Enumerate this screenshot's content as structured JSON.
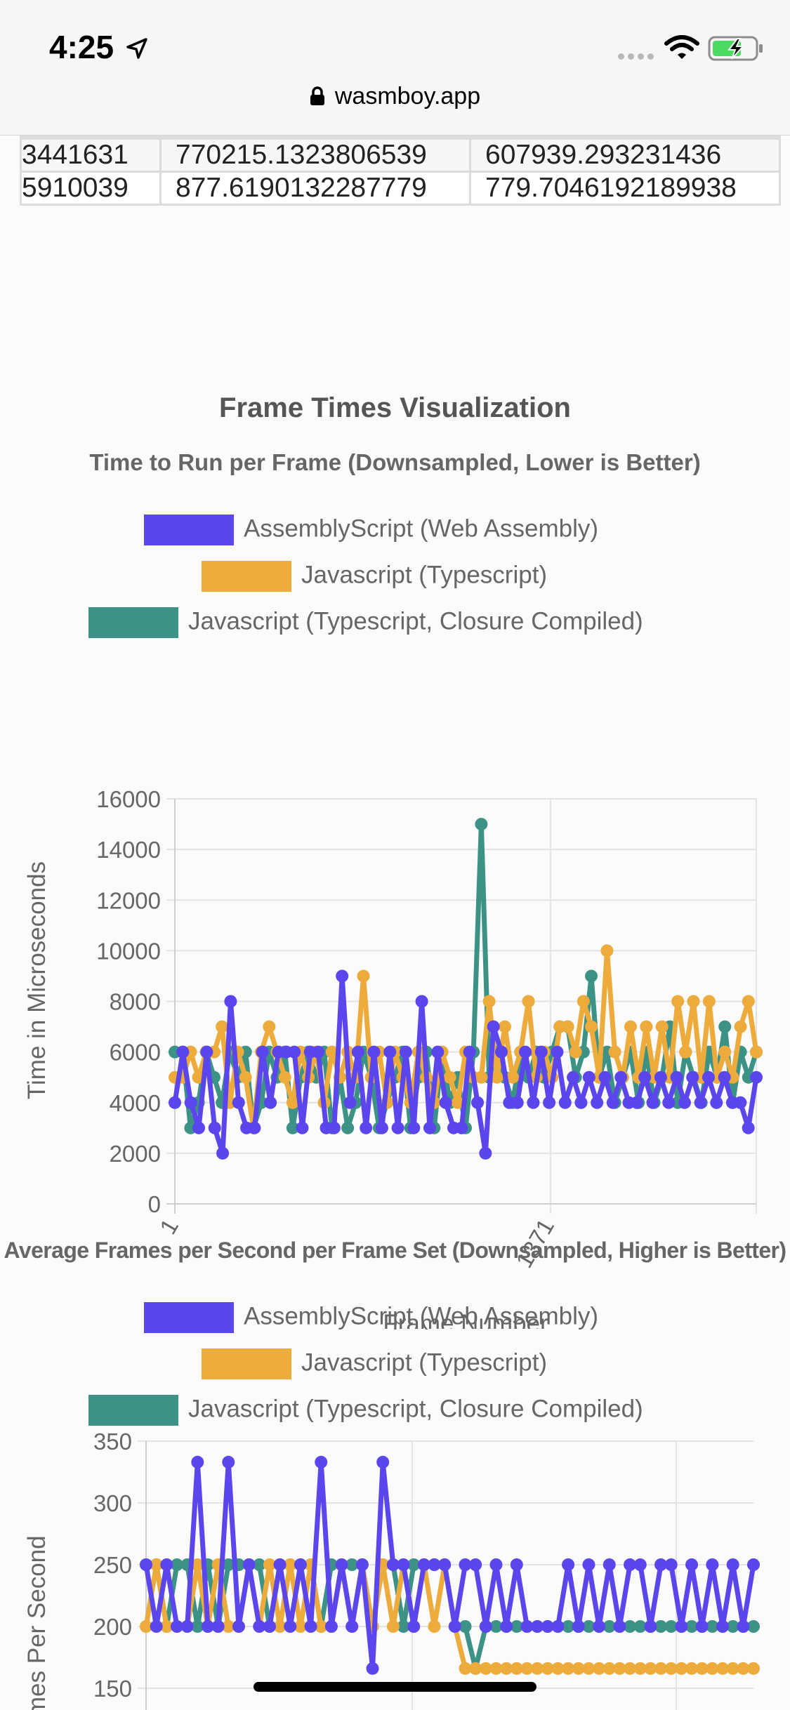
{
  "status_bar": {
    "time": "4:25"
  },
  "browser": {
    "url": "wasmboy.app"
  },
  "results_table": {
    "rows": [
      [
        "",
        "",
        ""
      ],
      [
        "3441631",
        "770215.1323806539",
        "607939.293231436"
      ],
      [
        "5910039",
        "877.6190132287779",
        "779.7046192189938"
      ]
    ]
  },
  "section": {
    "title": "Frame Times Visualization"
  },
  "colors": {
    "wasm": "#5b45ec",
    "js": "#edab3b",
    "closure": "#3c9385"
  },
  "legend": [
    {
      "label": "AssemblyScript (Web Assembly)",
      "color": "#5b45ec"
    },
    {
      "label": "Javascript (Typescript)",
      "color": "#edab3b"
    },
    {
      "label": "Javascript (Typescript, Closure Compiled)",
      "color": "#3c9385"
    }
  ],
  "chart_data": [
    {
      "type": "line",
      "title": "Time to Run per Frame (Downsampled, Lower is Better)",
      "xlabel": "Frame Number",
      "ylabel": "Time in Microseconds",
      "ylim": [
        0,
        16000
      ],
      "yticks": [
        "0",
        "2000",
        "4000",
        "6000",
        "8000",
        "10000",
        "12000",
        "14000",
        "16000"
      ],
      "xticks": [
        "1",
        "1371"
      ],
      "grid": true,
      "legend_position": "top",
      "series": [
        {
          "name": "AssemblyScript (Web Assembly)",
          "color": "#5b45ec",
          "values": [
            4000,
            6000,
            4000,
            3000,
            6000,
            3000,
            2000,
            8000,
            4000,
            3000,
            3000,
            6000,
            4000,
            6000,
            6000,
            6000,
            3000,
            6000,
            6000,
            3000,
            3000,
            9000,
            4000,
            6000,
            3000,
            6000,
            3000,
            6000,
            3000,
            6000,
            3000,
            8000,
            3000,
            6000,
            4000,
            3000,
            3000,
            6000,
            4000,
            2000,
            7000,
            6000,
            4000,
            4000,
            6000,
            4000,
            6000,
            4000,
            6000,
            4000,
            5000,
            4000,
            5000,
            4000,
            5000,
            4000,
            5000,
            4000,
            4000,
            5000,
            4000,
            5000,
            4000,
            5000,
            4000,
            5000,
            4000,
            5000,
            4000,
            5000,
            4000,
            4000,
            3000,
            5000
          ]
        },
        {
          "name": "Javascript (Typescript)",
          "color": "#edab3b",
          "values": [
            5000,
            5000,
            6000,
            5000,
            6000,
            6000,
            7000,
            4000,
            6000,
            5000,
            3000,
            6000,
            7000,
            6000,
            5000,
            4000,
            6000,
            5000,
            6000,
            4000,
            6000,
            5000,
            6000,
            5000,
            9000,
            5000,
            6000,
            4000,
            6000,
            5000,
            4000,
            6000,
            5000,
            4000,
            6000,
            5000,
            4000,
            6000,
            5000,
            5000,
            8000,
            5000,
            7000,
            5000,
            6000,
            8000,
            5000,
            6000,
            5000,
            7000,
            7000,
            6000,
            8000,
            7000,
            5000,
            10000,
            6000,
            5000,
            7000,
            5000,
            7000,
            5000,
            7000,
            5000,
            8000,
            6000,
            8000,
            5000,
            8000,
            5000,
            6000,
            5000,
            7000,
            8000,
            6000
          ]
        },
        {
          "name": "Javascript (Typescript, Closure Compiled)",
          "color": "#3c9385",
          "values": [
            6000,
            6000,
            3000,
            4000,
            6000,
            5000,
            4000,
            6000,
            5000,
            6000,
            3000,
            4000,
            6000,
            5000,
            6000,
            3000,
            5000,
            6000,
            5000,
            6000,
            3000,
            5000,
            3000,
            4000,
            6000,
            5000,
            3000,
            4000,
            5000,
            6000,
            3000,
            5000,
            6000,
            3000,
            6000,
            4000,
            5000,
            3000,
            6000,
            15000,
            5000,
            6000,
            5000,
            4000,
            6000,
            5000,
            6000,
            5000,
            6000,
            7000,
            7000,
            5000,
            6000,
            9000,
            5000,
            6000,
            4000,
            5000,
            6000,
            4000,
            6000,
            4000,
            5000,
            7000,
            4000,
            6000,
            5000,
            4000,
            6000,
            5000,
            7000,
            4000,
            6000,
            5000,
            6000
          ]
        }
      ]
    },
    {
      "type": "line",
      "title": "Average Frames per Second per Frame Set (Downsampled, Higher is Better)",
      "ylabel": "Frames Per Second",
      "ylim": [
        150,
        350
      ],
      "yticks": [
        "150",
        "200",
        "250",
        "300",
        "350"
      ],
      "grid": true,
      "legend_position": "top",
      "series": [
        {
          "name": "AssemblyScript (Web Assembly)",
          "color": "#5b45ec",
          "values": [
            250,
            200,
            250,
            200,
            200,
            333,
            200,
            200,
            333,
            200,
            250,
            200,
            200,
            250,
            200,
            250,
            200,
            333,
            200,
            250,
            200,
            250,
            166,
            333,
            250,
            250,
            200,
            250,
            250,
            250,
            200,
            250,
            250,
            200,
            250,
            200,
            250,
            200,
            200,
            200,
            200,
            250,
            200,
            250,
            200,
            250,
            200,
            250,
            250,
            200,
            250,
            250,
            200,
            250,
            200,
            250,
            200,
            250,
            200,
            250
          ]
        },
        {
          "name": "Javascript (Typescript)",
          "color": "#edab3b",
          "values": [
            200,
            250,
            200,
            200,
            200,
            250,
            200,
            250,
            200,
            200,
            250,
            200,
            250,
            200,
            250,
            200,
            250,
            200,
            200,
            250,
            200,
            250,
            200,
            250,
            200,
            250,
            200,
            250,
            200,
            250,
            200,
            166,
            166,
            166,
            166,
            166,
            166,
            166,
            166,
            166,
            166,
            166,
            166,
            166,
            166,
            166,
            166,
            166,
            166,
            166,
            166,
            166,
            166,
            166,
            166,
            166,
            166,
            166,
            166,
            166
          ]
        },
        {
          "name": "Javascript (Typescript, Closure Compiled)",
          "color": "#3c9385",
          "values": [
            250,
            250,
            200,
            250,
            250,
            200,
            250,
            200,
            250,
            250,
            250,
            250,
            200,
            250,
            250,
            250,
            250,
            200,
            250,
            250,
            250,
            250,
            200,
            250,
            250,
            200,
            250,
            250,
            250,
            250,
            200,
            200,
            166,
            200,
            200,
            200,
            200,
            200,
            200,
            200,
            200,
            200,
            200,
            200,
            200,
            200,
            200,
            200,
            200,
            200,
            200,
            200,
            200,
            200,
            200,
            200,
            200,
            200,
            200,
            200
          ]
        }
      ]
    }
  ]
}
